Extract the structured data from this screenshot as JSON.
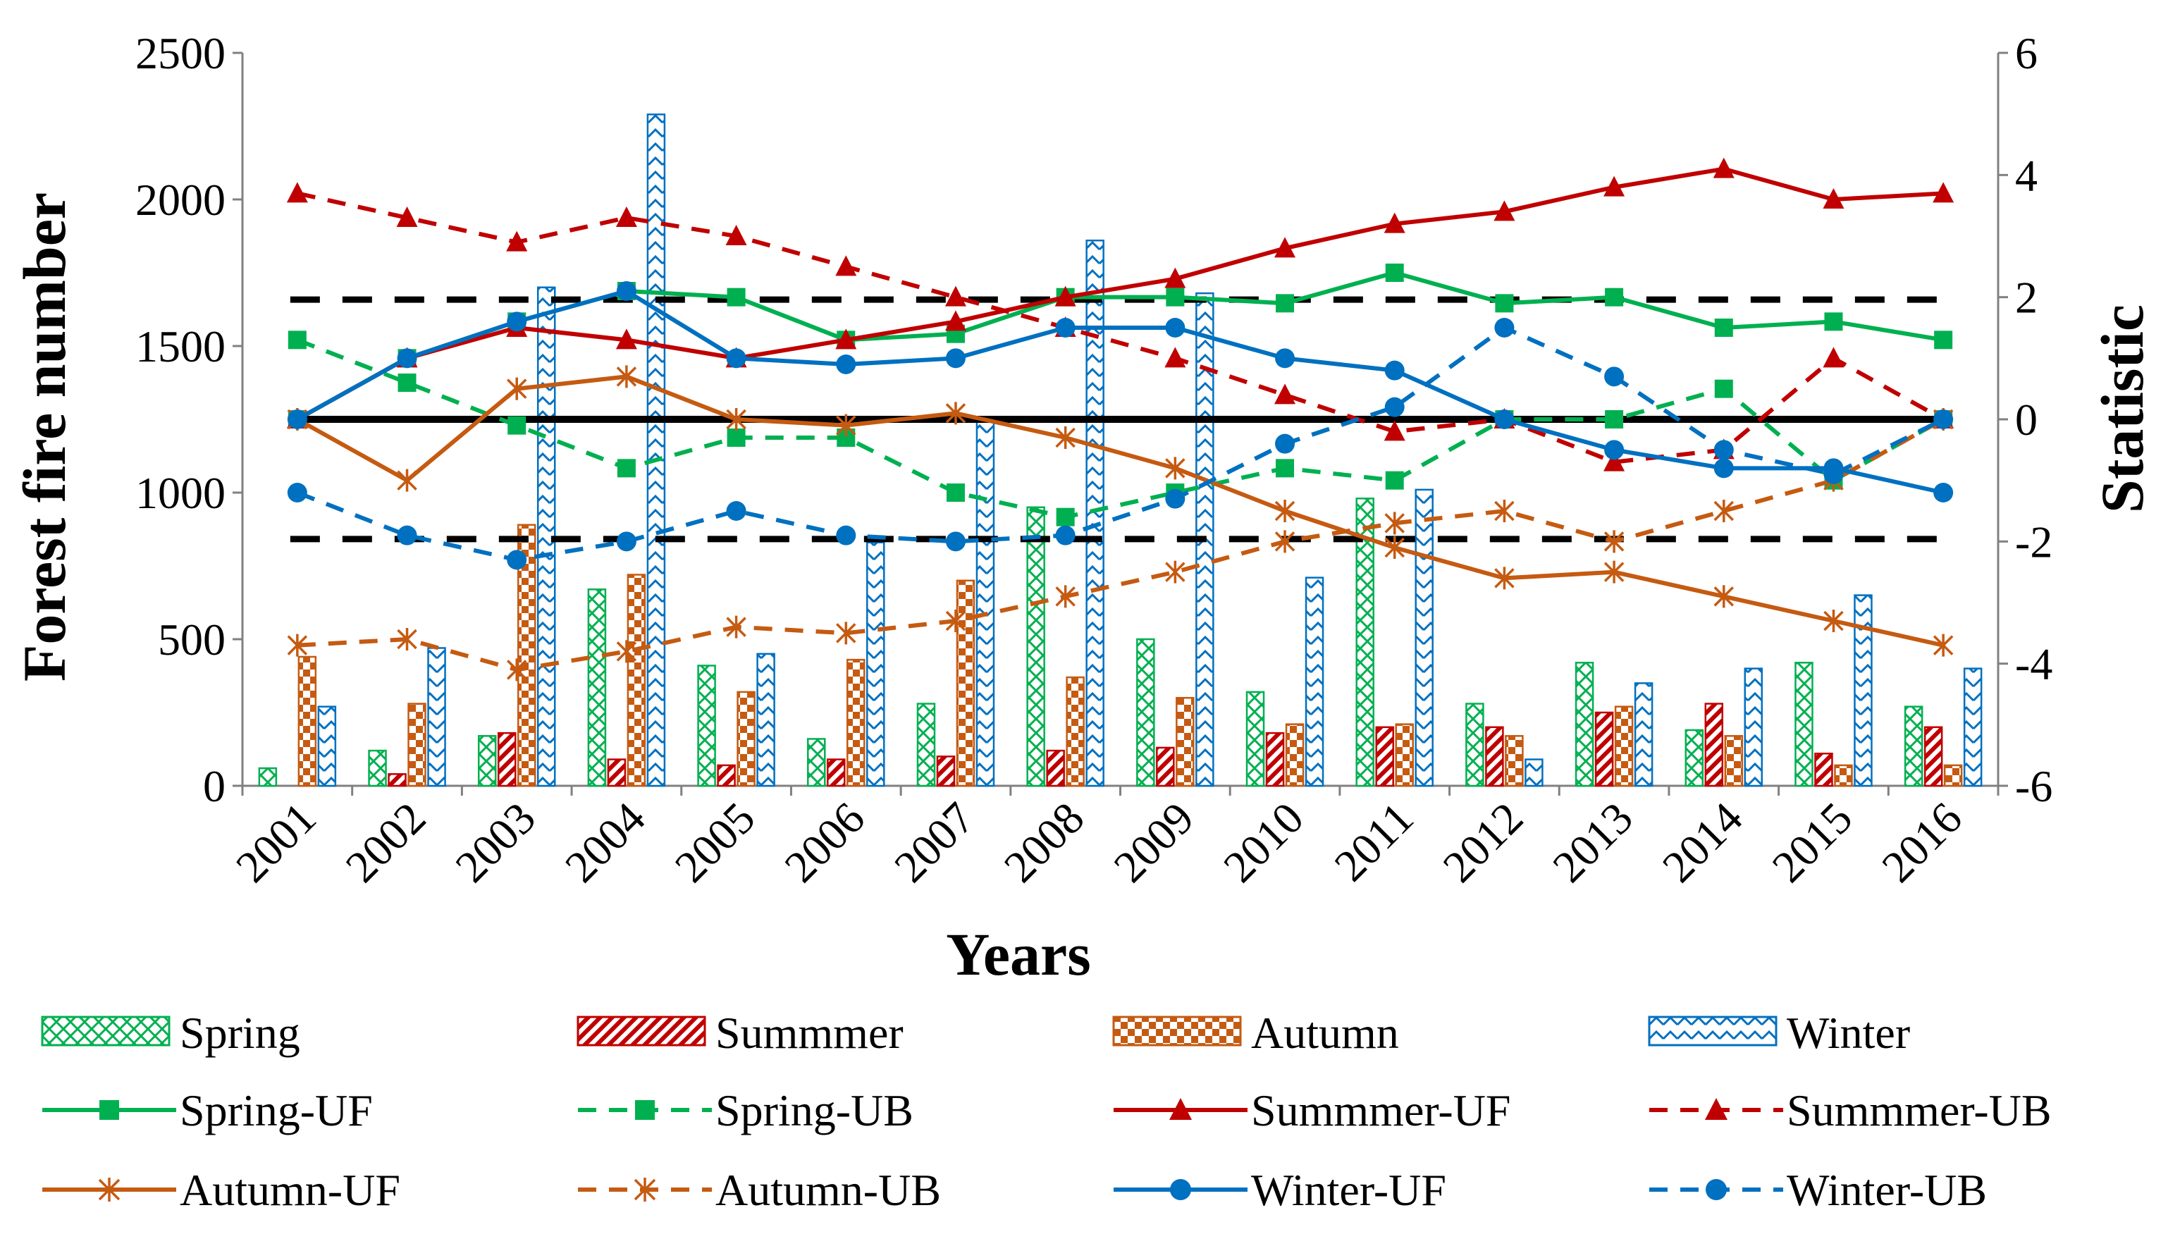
{
  "chart_data": {
    "type": "bar+line",
    "categories": [
      "2001",
      "2002",
      "2003",
      "2004",
      "2005",
      "2006",
      "2007",
      "2008",
      "2009",
      "2010",
      "2011",
      "2012",
      "2013",
      "2014",
      "2015",
      "2016"
    ],
    "xlabel": "Years",
    "ylabel": "Forest fire number",
    "y2label": "Statistic",
    "ylim": [
      0,
      2500
    ],
    "yticks": [
      0,
      500,
      1000,
      1500,
      2000,
      2500
    ],
    "y2lim": [
      -6,
      6
    ],
    "y2ticks": [
      -6,
      -4,
      -2,
      0,
      2,
      4,
      6
    ],
    "bars": [
      {
        "name": "Spring",
        "color": "#00b050",
        "values": [
          60,
          120,
          170,
          670,
          410,
          160,
          280,
          950,
          500,
          320,
          980,
          280,
          420,
          190,
          420,
          270
        ]
      },
      {
        "name": "Summmer",
        "color": "#c00000",
        "values": [
          0,
          40,
          180,
          90,
          70,
          90,
          100,
          120,
          130,
          180,
          200,
          200,
          250,
          280,
          110,
          200
        ]
      },
      {
        "name": "Autumn",
        "color": "#c55a11",
        "values": [
          440,
          280,
          890,
          720,
          320,
          430,
          700,
          370,
          300,
          210,
          210,
          170,
          270,
          170,
          70,
          70
        ]
      },
      {
        "name": "Winter",
        "color": "#0070c0",
        "values": [
          270,
          470,
          1700,
          2290,
          450,
          830,
          1250,
          1860,
          1680,
          710,
          1010,
          90,
          350,
          400,
          650,
          400
        ]
      }
    ],
    "lines": [
      {
        "name": "Spring-UF",
        "color": "#00b050",
        "dash": "solid",
        "marker": "square",
        "values": [
          0,
          1.0,
          1.6,
          2.1,
          2.0,
          1.3,
          1.4,
          2.0,
          2.0,
          1.9,
          2.4,
          1.9,
          2.0,
          1.5,
          1.6,
          1.3
        ]
      },
      {
        "name": "Spring-UB",
        "color": "#00b050",
        "dash": "dashed",
        "marker": "square",
        "values": [
          1.3,
          0.6,
          -0.1,
          -0.8,
          -0.3,
          -0.3,
          -1.2,
          -1.6,
          -1.2,
          -0.8,
          -1.0,
          0,
          0,
          0.5,
          -1.0,
          0
        ]
      },
      {
        "name": "Summmer-UF",
        "color": "#c00000",
        "dash": "solid",
        "marker": "triangle",
        "values": [
          0,
          1.0,
          1.5,
          1.3,
          1.0,
          1.3,
          1.6,
          2.0,
          2.3,
          2.8,
          3.2,
          3.4,
          3.8,
          4.1,
          3.6,
          3.7
        ]
      },
      {
        "name": "Summmer-UB",
        "color": "#c00000",
        "dash": "dashed",
        "marker": "triangle",
        "values": [
          3.7,
          3.3,
          2.9,
          3.3,
          3.0,
          2.5,
          2.0,
          1.5,
          1.0,
          0.4,
          -0.2,
          0,
          -0.7,
          -0.5,
          1.0,
          0
        ]
      },
      {
        "name": "Autumn-UF",
        "color": "#c55a11",
        "dash": "solid",
        "marker": "star",
        "values": [
          0,
          -1.0,
          0.5,
          0.7,
          0,
          -0.1,
          0.1,
          -0.3,
          -0.8,
          -1.5,
          -2.1,
          -2.6,
          -2.5,
          -2.9,
          -3.3,
          -3.7
        ]
      },
      {
        "name": "Autumn-UB",
        "color": "#c55a11",
        "dash": "dashed",
        "marker": "star",
        "values": [
          -3.7,
          -3.6,
          -4.1,
          -3.8,
          -3.4,
          -3.5,
          -3.3,
          -2.9,
          -2.5,
          -2.0,
          -1.7,
          -1.5,
          -2.0,
          -1.5,
          -1.0,
          0
        ]
      },
      {
        "name": "Winter-UF",
        "color": "#0070c0",
        "dash": "solid",
        "marker": "circle",
        "values": [
          0,
          1.0,
          1.6,
          2.1,
          1.0,
          0.9,
          1.0,
          1.5,
          1.5,
          1.0,
          0.8,
          0,
          -0.5,
          -0.8,
          -0.8,
          -1.2
        ]
      },
      {
        "name": "Winter-UB",
        "color": "#0070c0",
        "dash": "dashed",
        "marker": "circle",
        "values": [
          -1.2,
          -1.9,
          -2.3,
          -2.0,
          -1.5,
          -1.9,
          -2.0,
          -1.9,
          -1.3,
          -0.4,
          0.2,
          1.5,
          0.7,
          -0.5,
          -0.9,
          0
        ]
      }
    ],
    "reference_lines": [
      {
        "value": 0,
        "style": "solid-black"
      },
      {
        "value": 1.96,
        "style": "dashed-black"
      },
      {
        "value": -1.96,
        "style": "dashed-black"
      }
    ],
    "legend_position": "bottom",
    "legend": [
      "Spring",
      "Summmer",
      "Autumn",
      "Winter",
      "Spring-UF",
      "Spring-UB",
      "Summmer-UF",
      "Summmer-UB",
      "Autumn-UF",
      "Autumn-UB",
      "Winter-UF",
      "Winter-UB"
    ]
  }
}
